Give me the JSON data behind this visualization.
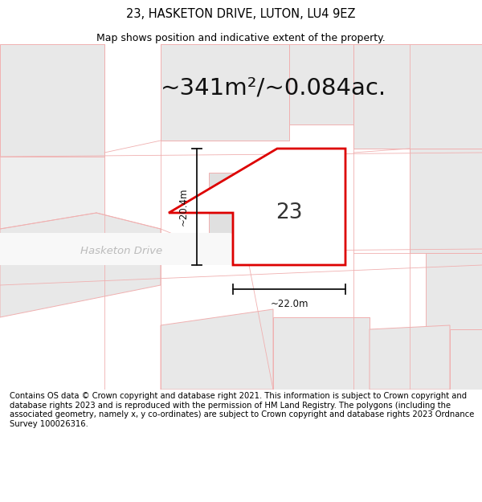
{
  "title_line1": "23, HASKETON DRIVE, LUTON, LU4 9EZ",
  "title_line2": "Map shows position and indicative extent of the property.",
  "area_text": "~341m²/~0.084ac.",
  "property_number": "23",
  "dim_horizontal": "~22.0m",
  "dim_vertical": "~20.4m",
  "street_name": "Hasketon Drive",
  "footer_text": "Contains OS data © Crown copyright and database right 2021. This information is subject to Crown copyright and database rights 2023 and is reproduced with the permission of HM Land Registry. The polygons (including the associated geometry, namely x, y co-ordinates) are subject to Crown copyright and database rights 2023 Ordnance Survey 100026316.",
  "bg_color": "#ffffff",
  "map_bg_color": "#ffffff",
  "property_fill": "#ffffff",
  "property_edge_color": "#dd0000",
  "parcel_fill": "#e8e8e8",
  "parcel_edge": "#f0b0b0",
  "road_fill": "#f0f0f0",
  "road_edge": "none",
  "grid_color": "#f0b0b0",
  "dim_color": "#111111",
  "street_color": "#bbbbbb",
  "number_color": "#333333",
  "area_color": "#111111",
  "title_fontsize": 10.5,
  "subtitle_fontsize": 9.0,
  "area_fontsize": 21,
  "number_fontsize": 19,
  "dim_fontsize": 8.5,
  "street_fontsize": 9.5,
  "footer_fontsize": 7.2,
  "prop_lw": 2.0,
  "parcel_lw": 0.7,
  "grid_lw": 0.6,
  "arrow_lw": 1.3
}
